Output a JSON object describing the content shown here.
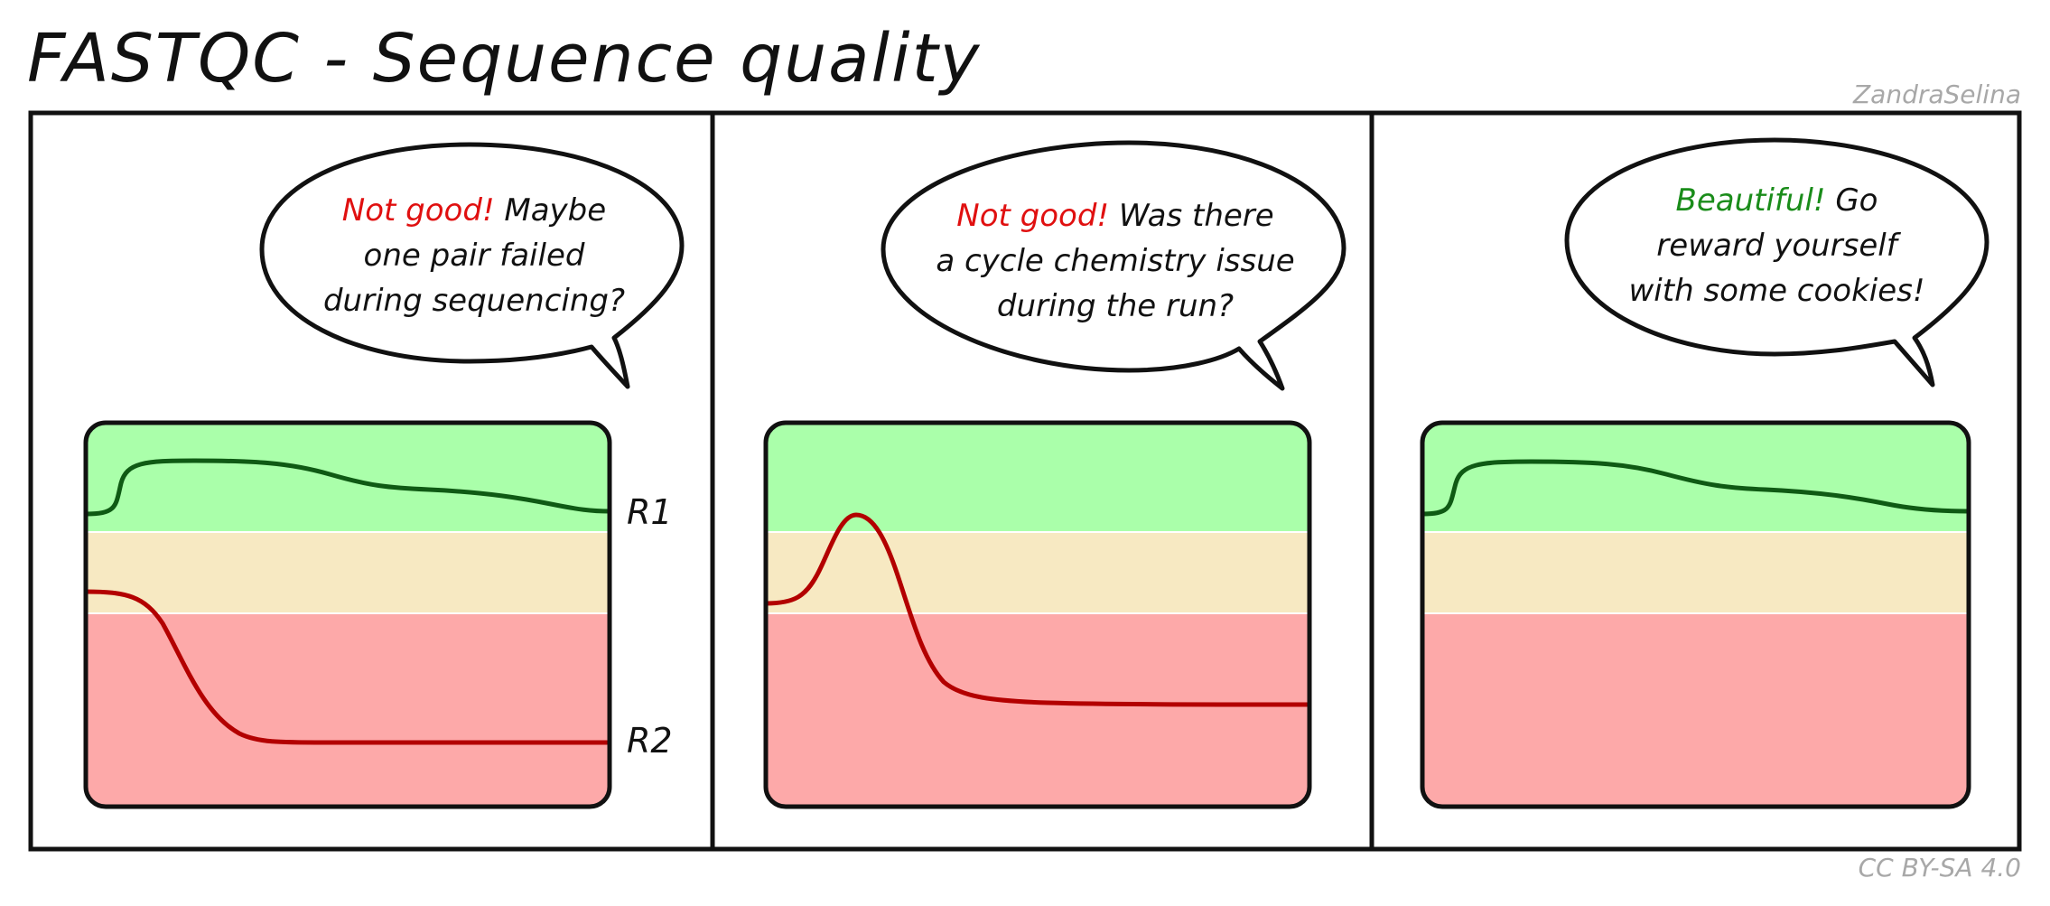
{
  "title": "FASTQC - Sequence quality",
  "author": "ZandraSelina",
  "license": "CC BY-SA 4.0",
  "colors": {
    "good_zone": "#aaffaa",
    "warn_zone": "#f7e9c2",
    "fail_zone": "#fda9a9",
    "good_line": "#0f5a14",
    "bad_line": "#b30000",
    "highlight_bad": "#e01010",
    "highlight_good": "#1a8c1a"
  },
  "panels": [
    {
      "bubble": {
        "highlight": "Not good!",
        "highlight_tone": "bad",
        "line1_rest": " Maybe",
        "line2": "one pair failed",
        "line3": "during sequencing?"
      },
      "labels": {
        "r1": "R1",
        "r2": "R2"
      }
    },
    {
      "bubble": {
        "highlight": "Not good!",
        "highlight_tone": "bad",
        "line1_rest": " Was there",
        "line2": "a cycle chemistry issue",
        "line3": "during the run?"
      }
    },
    {
      "bubble": {
        "highlight": "Beautiful!",
        "highlight_tone": "good",
        "line1_rest": " Go",
        "line2": "reward yourself",
        "line3": "with some cookies!"
      }
    }
  ]
}
